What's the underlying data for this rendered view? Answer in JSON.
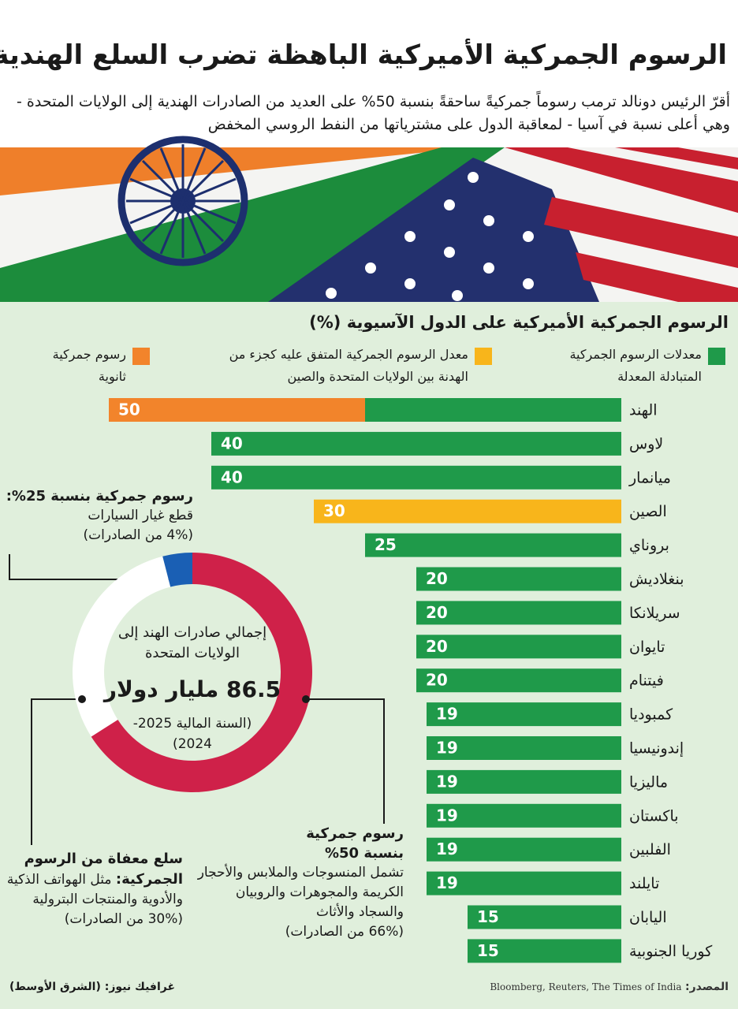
{
  "header": {
    "title": "الرسوم الجمركية الأميركية الباهظة تضرب السلع الهندية",
    "subtitle": "أقرّ الرئيس دونالد ترمب رسوماً جمركيةً ساحقةً بنسبة 50% على العديد من الصادرات الهندية إلى الولايات المتحدة - وهي أعلى نسبة في آسيا - لمعاقبة الدول على مشترياتها من النفط الروسي المخفض"
  },
  "chart_data": [
    {
      "type": "bar",
      "orientation": "horizontal",
      "title": "الرسوم الجمركية الأميركية على الدول الآسيوية (%)",
      "categories": [
        "الهند",
        "لاوس",
        "ميانمار",
        "الصين",
        "بروناي",
        "بنغلاديش",
        "سريلانكا",
        "تايوان",
        "فيتنام",
        "كمبوديا",
        "إندونيسيا",
        "ماليزيا",
        "باكستان",
        "الفلبين",
        "تايلند",
        "اليابان",
        "كوريا الجنوبية"
      ],
      "series": [
        {
          "name": "معدلات الرسوم الجمركية المتبادلة المعدلة",
          "color": "#1f9a4a",
          "values": [
            25,
            40,
            40,
            null,
            25,
            20,
            20,
            20,
            20,
            19,
            19,
            19,
            19,
            19,
            19,
            15,
            15
          ]
        },
        {
          "name": "معدل الرسوم الجمركية المتفق عليه كجزء من الهدنة بين الولايات المتحدة والصين",
          "color": "#f8b51b",
          "values": [
            null,
            null,
            null,
            30,
            null,
            null,
            null,
            null,
            null,
            null,
            null,
            null,
            null,
            null,
            null,
            null,
            null
          ]
        },
        {
          "name": "رسوم جمركية ثانوية",
          "color": "#f2842b",
          "values": [
            25,
            null,
            null,
            null,
            null,
            null,
            null,
            null,
            null,
            null,
            null,
            null,
            null,
            null,
            null,
            null,
            null
          ]
        }
      ],
      "totals": [
        50,
        40,
        40,
        30,
        25,
        20,
        20,
        20,
        20,
        19,
        19,
        19,
        19,
        19,
        19,
        15,
        15
      ]
    },
    {
      "type": "pie",
      "donut": true,
      "center_title": "إجمالي صادرات الهند إلى الولايات المتحدة",
      "center_value": "86.5 مليار دولار",
      "center_note": "(السنة المالية 2025-2024)",
      "categories": [
        "رسوم جمركية بنسبة 50%",
        "سلع معفاة من الرسوم الجمركية:",
        "رسوم جمركية بنسبة 25%:"
      ],
      "descriptions": [
        "تشمل المنسوجات والملابس والأحجار الكريمة والمجوهرات والروبيان والسجاد والأثاث",
        "مثل الهواتف الذكية والأدوية والمنتجات البترولية",
        "قطع غيار السيارات"
      ],
      "values": [
        66,
        30,
        4
      ],
      "value_labels": [
        "(66% من الصادرات)",
        "(30% من الصادرات)",
        "(4% من الصادرات)"
      ],
      "colors": [
        "#cf2149",
        "#ffffff",
        "#1a5fb4"
      ]
    }
  ],
  "footer": {
    "source_label": "المصدر:",
    "source": "Bloomberg, Reuters, The Times of India",
    "credit": "غرافيك نيوز: (الشرق الأوسط)"
  }
}
